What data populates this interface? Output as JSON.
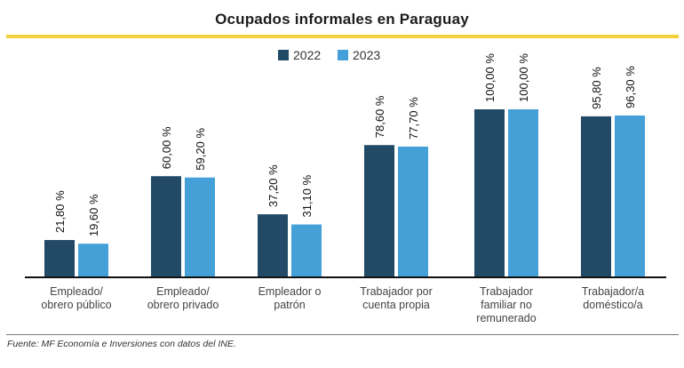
{
  "title": "Ocupados informales en Paraguay",
  "source": "Fuente: MF Economía e Inversiones con datos del INE.",
  "chart_data": {
    "type": "bar",
    "title": "Ocupados informales en Paraguay",
    "xlabel": "",
    "ylabel": "",
    "ylim": [
      0,
      100
    ],
    "grid": false,
    "legend_position": "top-center",
    "categories": [
      [
        "Empleado/",
        "obrero público"
      ],
      [
        "Empleado/",
        "obrero privado"
      ],
      [
        "Empleador o",
        "patrón"
      ],
      [
        "Trabajador por",
        "cuenta propia"
      ],
      [
        "Trabajador",
        "familiar no",
        "remunerado"
      ],
      [
        "Trabajador/a",
        "doméstico/a"
      ]
    ],
    "series": [
      {
        "name": "2022",
        "color": "#224a66",
        "values": [
          21.8,
          60.0,
          37.2,
          78.6,
          100.0,
          95.8
        ],
        "labels": [
          "21,80 %",
          "60,00 %",
          "37,20 %",
          "78,60 %",
          "100,00 %",
          "95,80 %"
        ]
      },
      {
        "name": "2023",
        "color": "#45a0d8",
        "values": [
          19.6,
          59.2,
          31.1,
          77.7,
          100.0,
          96.3
        ],
        "labels": [
          "19,60 %",
          "59,20 %",
          "31,10 %",
          "77,70 %",
          "100,00 %",
          "96,30 %"
        ]
      }
    ]
  }
}
